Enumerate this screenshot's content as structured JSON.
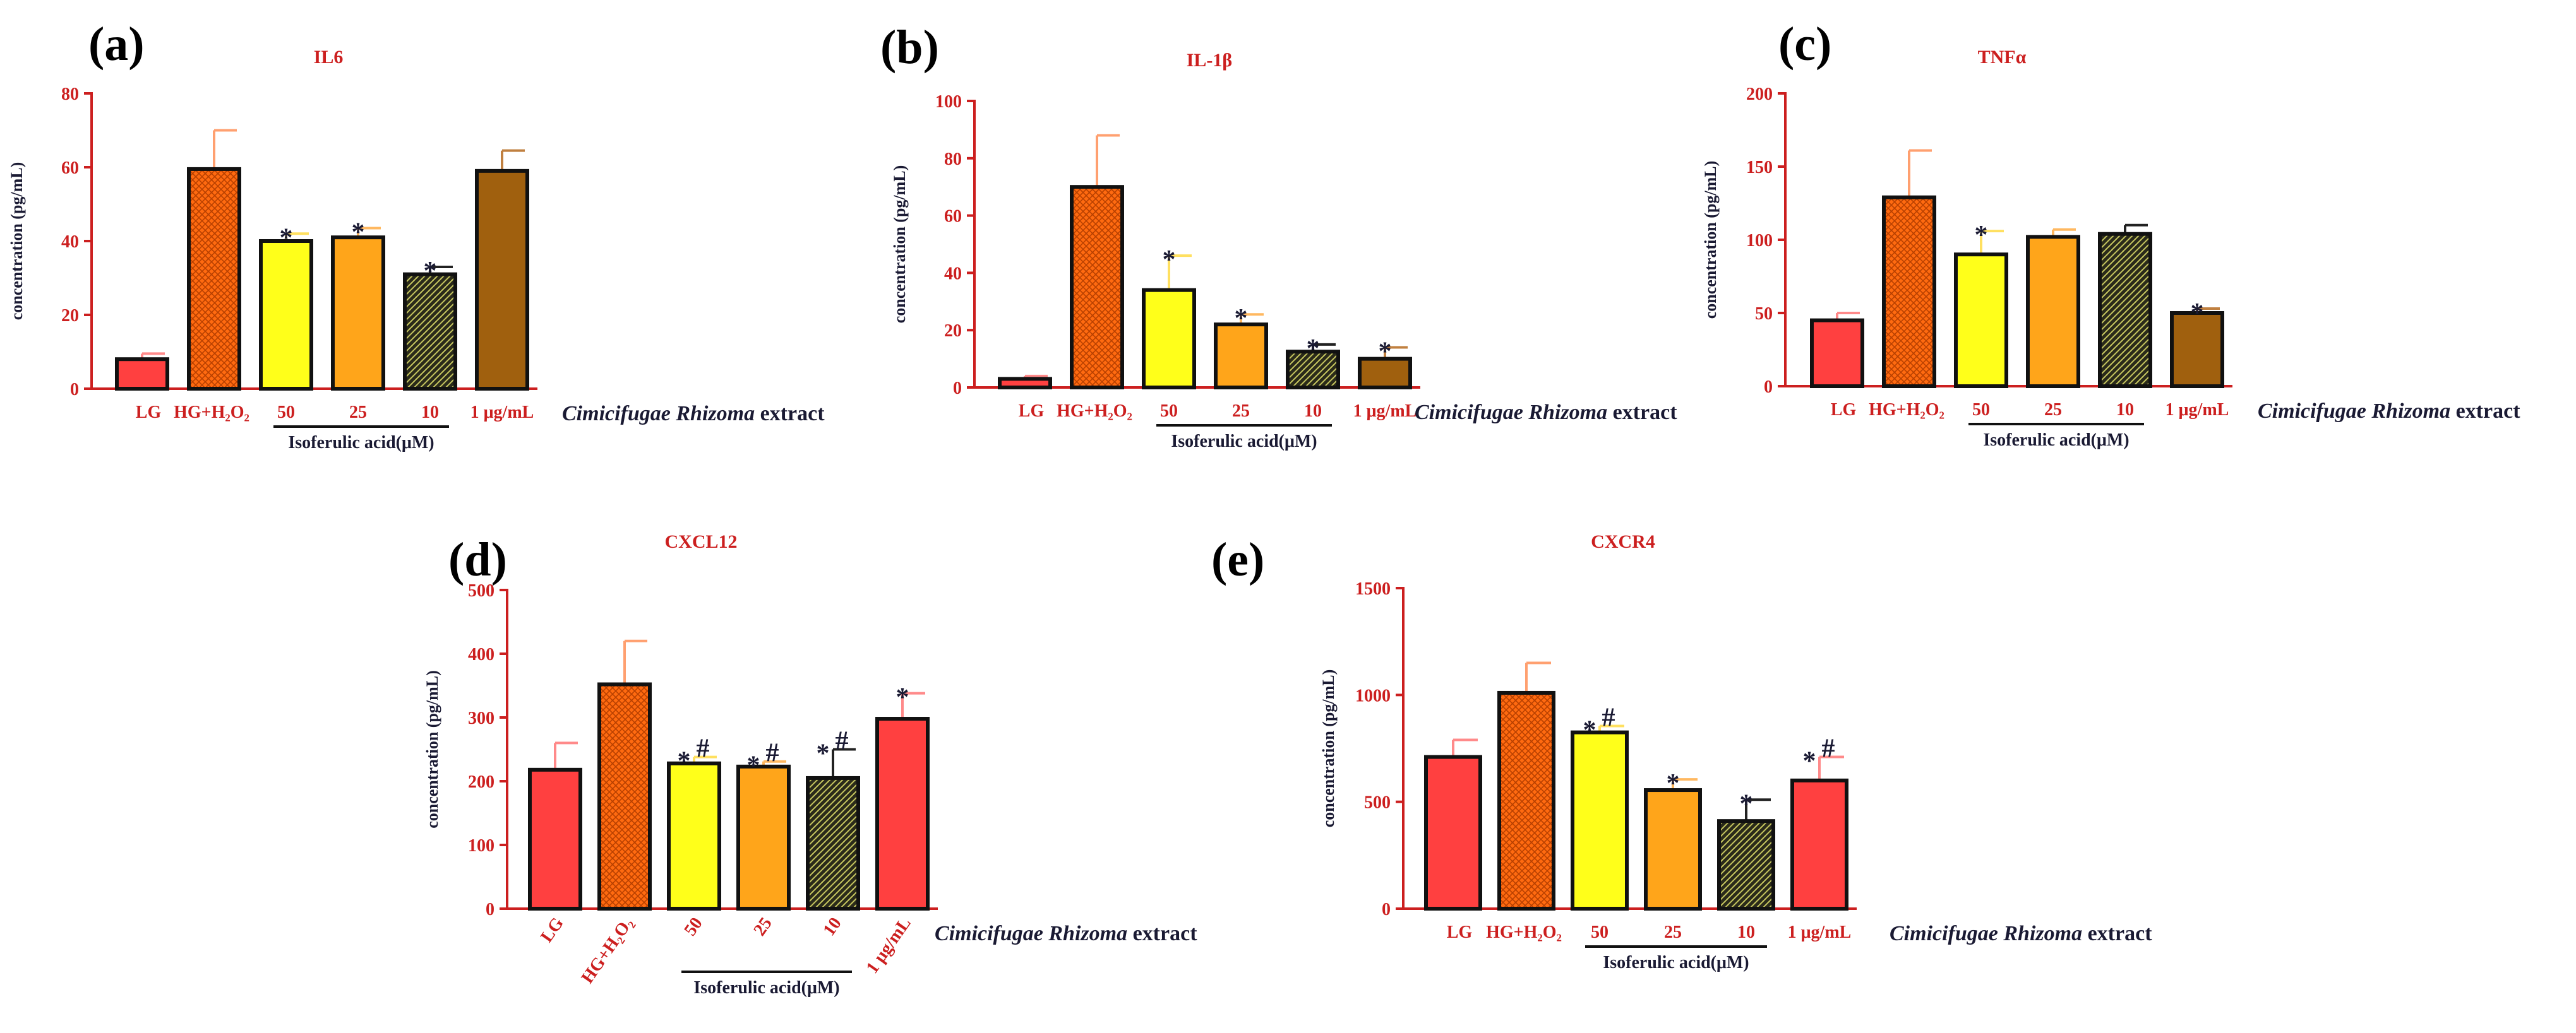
{
  "figure": {
    "extract_label_italic": "Cimicifugae Rhizoma",
    "extract_label_tail": " extract",
    "group_label": "Isoferulic acid(μM)",
    "bar_colors": [
      "#ff4040",
      "#ff6a10",
      "#ffff1a",
      "#ffa51a",
      "#2a2a1a",
      "#a0600e"
    ],
    "error_colors": [
      "#ff8a8a",
      "#ffa070",
      "#ffe060",
      "#ffb860",
      "#222222",
      "#c08040"
    ]
  },
  "chart_data": [
    {
      "type": "bar",
      "panel": "(a)",
      "title": "IL6",
      "ylabel": "concentration (pg/mL)",
      "ylim": [
        0,
        80
      ],
      "yticks": [
        "0",
        "20",
        "40",
        "60",
        "80"
      ],
      "categories": [
        "LG",
        "HG+H₂O₂",
        "50",
        "25",
        "10",
        "1 μg/mL"
      ],
      "values": [
        8,
        59.5,
        40,
        41,
        31,
        59
      ],
      "errors": [
        1.5,
        10.5,
        2,
        2.5,
        2,
        5.5
      ],
      "significance": [
        "",
        "",
        "*",
        "*",
        "*",
        ""
      ]
    },
    {
      "type": "bar",
      "panel": "(b)",
      "title": "IL-1β",
      "ylabel": "concentration (pg/mL)",
      "ylim": [
        0,
        100
      ],
      "yticks": [
        "0",
        "20",
        "40",
        "60",
        "80",
        "100"
      ],
      "categories": [
        "LG",
        "HG+H₂O₂",
        "50",
        "25",
        "10",
        "1 μg/mL"
      ],
      "values": [
        3,
        70,
        34,
        22,
        12.5,
        10
      ],
      "errors": [
        1,
        18,
        12,
        3.5,
        2.5,
        4
      ],
      "significance": [
        "",
        "",
        "*",
        "*",
        "*",
        "*"
      ]
    },
    {
      "type": "bar",
      "panel": "(c)",
      "title": "TNFα",
      "ylabel": "concentration (pg/mL)",
      "ylim": [
        0,
        200
      ],
      "yticks": [
        "0",
        "50",
        "100",
        "150",
        "200"
      ],
      "categories": [
        "LG",
        "HG+H₂O₂",
        "50",
        "25",
        "10",
        "1 μg/mL"
      ],
      "values": [
        45,
        129,
        90,
        102,
        104,
        50
      ],
      "errors": [
        5,
        32,
        16,
        5,
        6,
        3
      ],
      "significance": [
        "",
        "",
        "*",
        "",
        "",
        "*"
      ]
    },
    {
      "type": "bar",
      "panel": "(d)",
      "title": "CXCL12",
      "ylabel": "concentration (pg/mL)",
      "ylim": [
        0,
        500
      ],
      "yticks": [
        "0",
        "100",
        "200",
        "300",
        "400",
        "500"
      ],
      "categories": [
        "LG",
        "HG+H₂O₂",
        "50",
        "25",
        "10",
        "1 μg/mL"
      ],
      "values": [
        218,
        352,
        228,
        223,
        205,
        298
      ],
      "errors": [
        42,
        68,
        10,
        8,
        45,
        40
      ],
      "significance": [
        "",
        "",
        "*#",
        "*#",
        "*#",
        "*"
      ]
    },
    {
      "type": "bar",
      "panel": "(e)",
      "title": "CXCR4",
      "ylabel": "concentration (pg/mL)",
      "ylim": [
        0,
        1500
      ],
      "yticks": [
        "0",
        "500",
        "1000",
        "1500"
      ],
      "categories": [
        "LG",
        "HG+H₂O₂",
        "50",
        "25",
        "10",
        "1 μg/mL"
      ],
      "values": [
        710,
        1010,
        825,
        555,
        410,
        600
      ],
      "errors": [
        80,
        140,
        30,
        50,
        100,
        110
      ],
      "significance": [
        "",
        "",
        "*#",
        "*",
        "*",
        "*#"
      ]
    }
  ]
}
